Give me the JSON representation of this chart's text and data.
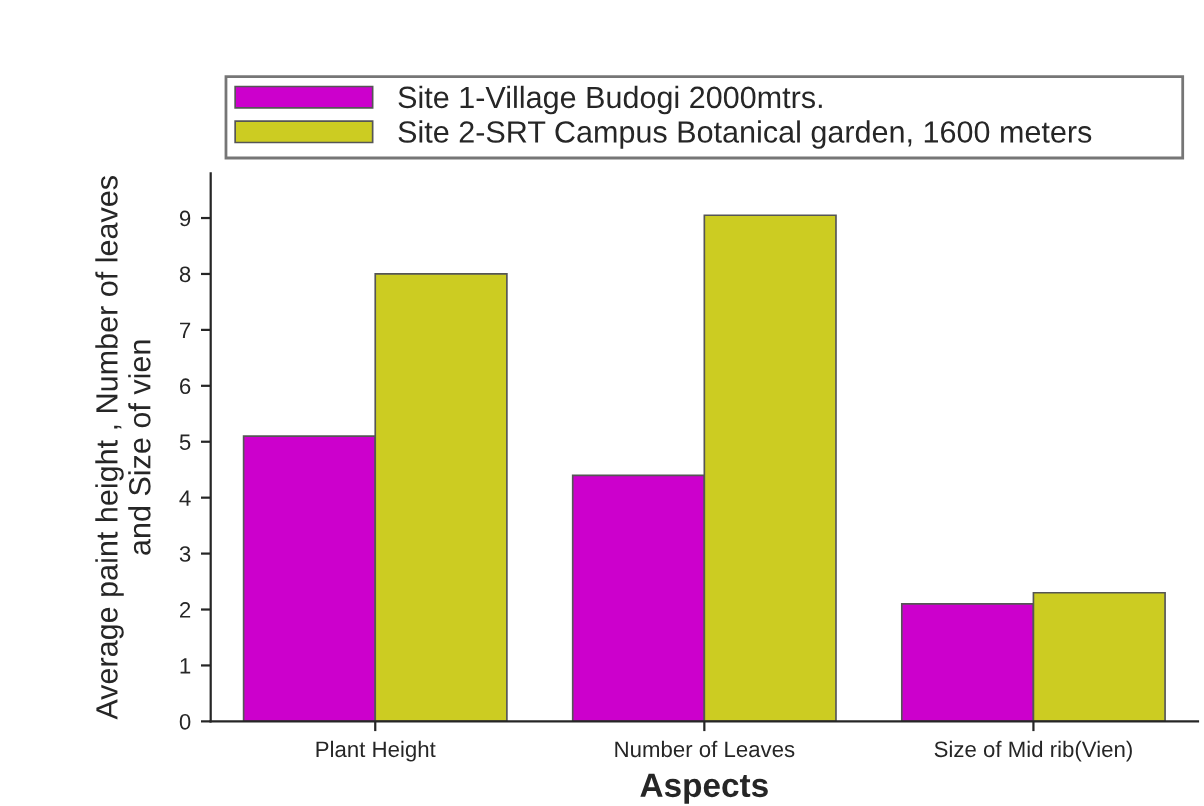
{
  "chart_data": {
    "type": "bar",
    "xlabel": "Aspects",
    "ylabel": "Average paint height , Number of leaves\nand Size of vien",
    "categories": [
      "Plant Height",
      "Number of Leaves",
      "Size of Mid rib(Vien)"
    ],
    "series": [
      {
        "name": "Site 1-Village Budogi 2000mtrs.",
        "color": "#cc00cc",
        "values": [
          5.1,
          4.4,
          2.1
        ]
      },
      {
        "name": "Site 2-SRT Campus Botanical garden, 1600 meters",
        "color": "#cccc22",
        "values": [
          8.0,
          9.05,
          2.3
        ]
      }
    ],
    "ylim": [
      0,
      9.8
    ],
    "yticks": [
      0,
      1,
      2,
      3,
      4,
      5,
      6,
      7,
      8,
      9
    ],
    "grid": false,
    "legend": "top"
  }
}
